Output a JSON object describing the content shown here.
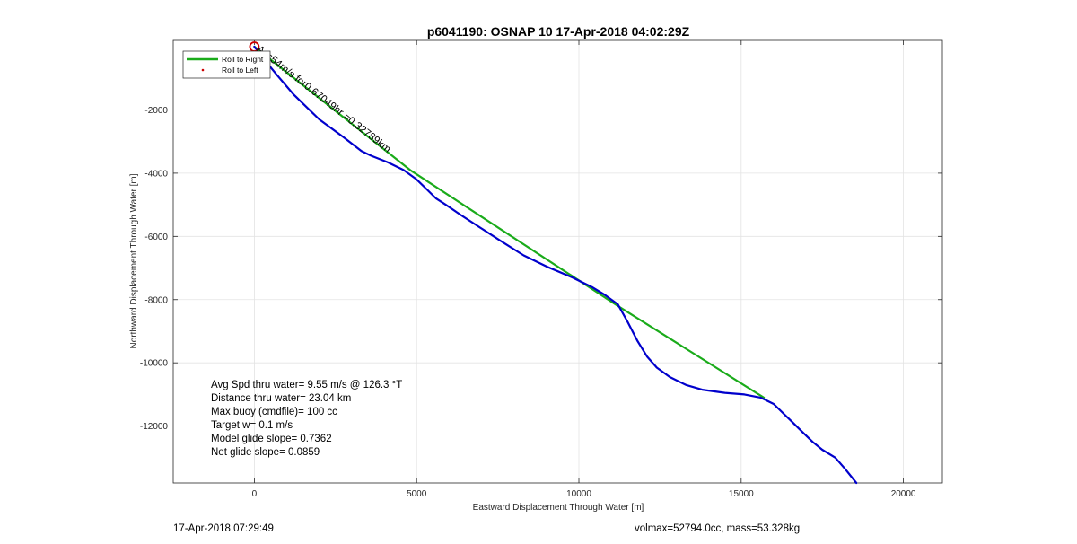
{
  "chart_data": {
    "type": "line",
    "title": "p6041190: OSNAP 10 17-Apr-2018 04:02:29Z",
    "xlabel": "Eastward Displacement Through Water [m]",
    "ylabel": "Northward Displacement Through Water [m]",
    "xlim": [
      -2500,
      21200
    ],
    "ylim": [
      -13800,
      200
    ],
    "xticks": [
      0,
      5000,
      10000,
      15000,
      20000
    ],
    "yticks": [
      -2000,
      -4000,
      -6000,
      -8000,
      -10000,
      -12000
    ],
    "grid": true,
    "legend": {
      "placement": "top-left",
      "entries": [
        {
          "label": "Roll to Right",
          "color": "#1aab1a",
          "style": "line"
        },
        {
          "label": "Roll to Left",
          "color": "#cc0000",
          "style": "dot"
        }
      ]
    },
    "series": [
      {
        "name": "Roll to Right",
        "color": "#1aab1a",
        "x": [
          0,
          4800,
          11200,
          15700
        ],
        "y": [
          0,
          -3900,
          -8200,
          -11100
        ]
      },
      {
        "color": "#0000cc",
        "x": [
          0,
          300,
          700,
          1200,
          2000,
          2800,
          3300,
          3600,
          4100,
          4600,
          5000,
          5300,
          5600,
          5900,
          6400,
          7000,
          7600,
          8300,
          9000,
          9800,
          10400,
          10800,
          11200,
          11500,
          11800,
          12100,
          12400,
          12800,
          13300,
          13800,
          14500,
          15100,
          15600,
          16000,
          16300,
          16600,
          16900,
          17200,
          17500,
          17900,
          18200,
          18550
        ],
        "y": [
          0,
          -400,
          -900,
          -1500,
          -2300,
          -2900,
          -3300,
          -3450,
          -3650,
          -3900,
          -4200,
          -4500,
          -4800,
          -5000,
          -5350,
          -5750,
          -6150,
          -6600,
          -6950,
          -7300,
          -7600,
          -7850,
          -8150,
          -8700,
          -9300,
          -9800,
          -10150,
          -10450,
          -10700,
          -10850,
          -10950,
          -11000,
          -11100,
          -11300,
          -11600,
          -11900,
          -12200,
          -12500,
          -12750,
          -13000,
          -13350,
          -13800
        ]
      }
    ],
    "start_marker": {
      "x": 0,
      "y": 0,
      "color": "#cc0000"
    },
    "leg_label": {
      "text": "Ass54m/s for0.67049hr =0.32789km",
      "x": 0,
      "y": 0
    }
  },
  "annotations": [
    "Avg Spd thru water=  9.55 m/s @ 126.3 °T",
    "Distance thru water= 23.04 km",
    "Max buoy (cmdfile)= 100 cc",
    "Target w= 0.1 m/s",
    "Model glide slope= 0.7362",
    "Net glide slope= 0.0859"
  ],
  "footer": {
    "timestamp": "17-Apr-2018 07:29:49",
    "volmass": "volmax=52794.0cc, mass=53.328kg"
  }
}
